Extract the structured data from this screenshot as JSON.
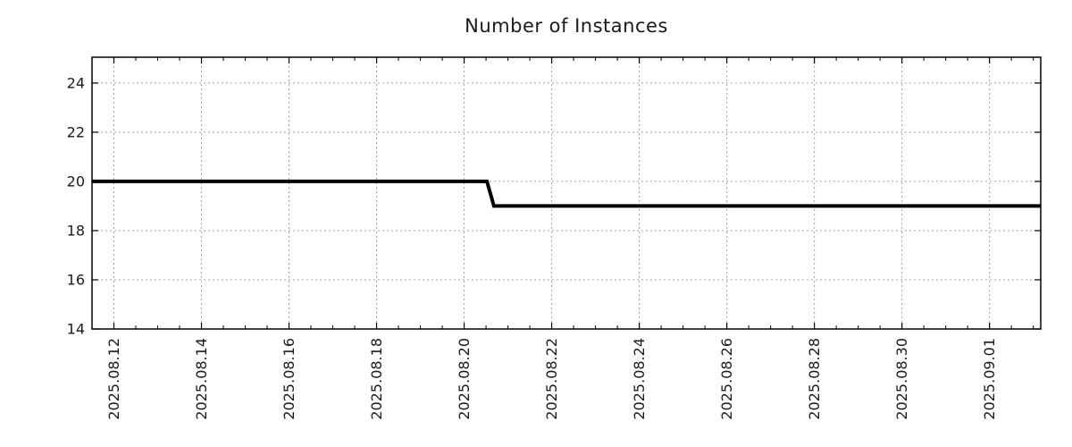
{
  "title": "Number of Instances",
  "colors": {
    "line": "#000000",
    "grid": "#a0a0a0",
    "axis": "#000000",
    "text": "#1a1a1a",
    "background": "#ffffff"
  },
  "chart_data": {
    "type": "line",
    "title": "Number of Instances",
    "x_axis": {
      "tick_labels": [
        "2025.08.12",
        "2025.08.14",
        "2025.08.16",
        "2025.08.18",
        "2025.08.20",
        "2025.08.22",
        "2025.08.24",
        "2025.08.26",
        "2025.08.28",
        "2025.08.30",
        "2025.09.01"
      ],
      "tick_positions_days": [
        0.5,
        2.5,
        4.5,
        6.5,
        8.5,
        10.5,
        12.5,
        14.5,
        16.5,
        18.5,
        20.5
      ],
      "minor_tick_step_days": 0.5,
      "range_days": [
        0,
        21.67
      ],
      "label_rotation_deg": -90
    },
    "y_axis": {
      "tick_labels": [
        "14",
        "16",
        "18",
        "20",
        "22",
        "24"
      ],
      "tick_values": [
        14,
        16,
        18,
        20,
        22,
        24
      ],
      "range": [
        14,
        25.05
      ]
    },
    "grid": {
      "show": true,
      "style": "dotted"
    },
    "legend": "none",
    "series": [
      {
        "name": "Number of Instances",
        "color": "#000000",
        "line_width": 4,
        "points": [
          [
            0,
            20
          ],
          [
            9.02,
            20
          ],
          [
            9.18,
            19
          ],
          [
            21.67,
            19
          ]
        ],
        "summary": "Holds at 20 instances, steps down to 19 just after 2025.08.20, then holds at 19 through the end"
      }
    ]
  }
}
